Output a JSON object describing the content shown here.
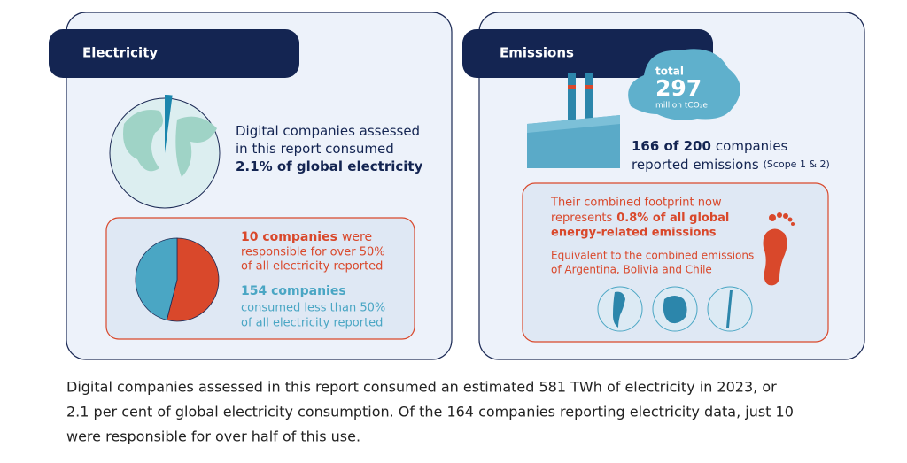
{
  "electricity": {
    "title": "Electricity",
    "globe": {
      "share": 2.1,
      "color": "#1a86ad",
      "lines": [
        "Digital companies assessed",
        "in this report consumed",
        "2.1% of global electricity"
      ]
    },
    "split": {
      "values": [
        54,
        46
      ],
      "colors": [
        "#d9482b",
        "#4aa6c4"
      ]
    },
    "group_top": {
      "bold": "10 companies",
      "rest": "were",
      "lines": [
        "responsible for over 50%",
        "of all electricity reported"
      ]
    },
    "group_bottom": {
      "bold": "154 companies",
      "lines": [
        "consumed less than 50%",
        "of all electricity reported"
      ]
    }
  },
  "emissions": {
    "title": "Emissions",
    "total_label": "total",
    "total_value": 297,
    "total_unit": "million tCO₂e",
    "reported": {
      "bold": "166 of 200",
      "rest": "companies",
      "line2": "reported emissions",
      "note": "(Scope 1 & 2)"
    },
    "footprint": {
      "lines": [
        "Their combined footprint now",
        "represents"
      ],
      "bold": [
        "0.8% of all global",
        "energy-related emissions"
      ]
    },
    "equivalent": [
      "Equivalent to the combined emissions",
      "of Argentina, Bolivia and Chile"
    ]
  },
  "caption": [
    "Digital companies assessed in this report consumed an estimated 581 TWh of electricity in 2023, or",
    "2.1 per cent of global electricity consumption. Of the 164 companies reporting electricity data, just 10",
    "were responsible for over half of this use."
  ]
}
